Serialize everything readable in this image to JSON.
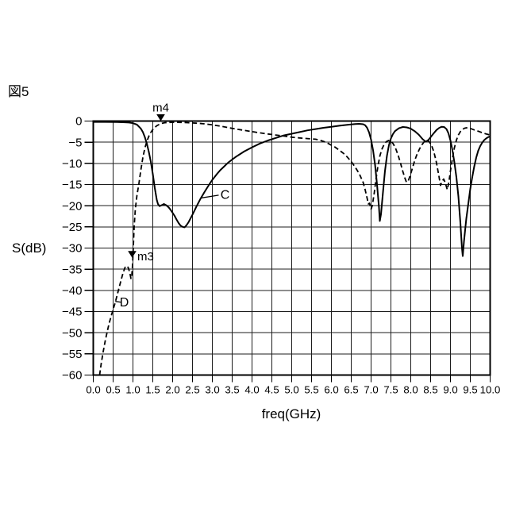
{
  "figure": {
    "label": "図5"
  },
  "colors": {
    "line": "#000000",
    "grid": "#1c1c1c",
    "background": "#ffffff"
  },
  "chart_data": {
    "type": "line",
    "title": "",
    "xlabel": "freq(GHz)",
    "ylabel": "S(dB)",
    "xlim": [
      0,
      10
    ],
    "ylim": [
      -60,
      0
    ],
    "grid": true,
    "x_ticks": [
      0,
      0.5,
      1,
      1.5,
      2,
      2.5,
      3,
      3.5,
      4,
      4.5,
      5,
      5.5,
      6,
      6.5,
      7,
      7.5,
      8,
      8.5,
      9,
      9.5,
      10
    ],
    "x_tick_labels": [
      "0.0",
      "0.5",
      "1.0",
      "1.5",
      "2.0",
      "2.5",
      "3.0",
      "3.5",
      "4.0",
      "4.5",
      "5.0",
      "5.5",
      "6.0",
      "6.5",
      "7.0",
      "7.5",
      "8.0",
      "8.5",
      "9.0",
      "9.5",
      "10.0"
    ],
    "y_ticks": [
      0,
      -5,
      -10,
      -15,
      -20,
      -25,
      -30,
      -35,
      -40,
      -45,
      -50,
      -55,
      -60
    ],
    "y_tick_labels": [
      "0",
      "−5",
      "−10",
      "−15",
      "−20",
      "−25",
      "−30",
      "−35",
      "−40",
      "−45",
      "−50",
      "−55",
      "−60"
    ],
    "series": [
      {
        "name": "C",
        "style": "solid",
        "points": [
          [
            0.0,
            -0.2
          ],
          [
            0.3,
            -0.2
          ],
          [
            0.6,
            -0.25
          ],
          [
            0.8,
            -0.3
          ],
          [
            0.9,
            -0.35
          ],
          [
            1.0,
            -0.5
          ],
          [
            1.1,
            -0.85
          ],
          [
            1.2,
            -1.8
          ],
          [
            1.25,
            -2.6
          ],
          [
            1.3,
            -3.8
          ],
          [
            1.35,
            -5.3
          ],
          [
            1.4,
            -7.3
          ],
          [
            1.45,
            -9.6
          ],
          [
            1.5,
            -12.5
          ],
          [
            1.55,
            -15.8
          ],
          [
            1.6,
            -18.6
          ],
          [
            1.63,
            -19.6
          ],
          [
            1.67,
            -20.1
          ],
          [
            1.72,
            -19.9
          ],
          [
            1.78,
            -19.6
          ],
          [
            1.84,
            -19.9
          ],
          [
            1.9,
            -20.4
          ],
          [
            1.95,
            -21.0
          ],
          [
            2.0,
            -21.7
          ],
          [
            2.05,
            -22.4
          ],
          [
            2.1,
            -23.3
          ],
          [
            2.15,
            -24.1
          ],
          [
            2.2,
            -24.7
          ],
          [
            2.25,
            -25.0
          ],
          [
            2.3,
            -25.1
          ],
          [
            2.35,
            -24.6
          ],
          [
            2.4,
            -23.9
          ],
          [
            2.45,
            -23.0
          ],
          [
            2.5,
            -22.1
          ],
          [
            2.6,
            -20.2
          ],
          [
            2.7,
            -18.4
          ],
          [
            2.8,
            -16.8
          ],
          [
            2.9,
            -15.3
          ],
          [
            3.0,
            -13.9
          ],
          [
            3.1,
            -12.7
          ],
          [
            3.2,
            -11.6
          ],
          [
            3.3,
            -10.7
          ],
          [
            3.4,
            -9.8
          ],
          [
            3.5,
            -9.1
          ],
          [
            3.6,
            -8.4
          ],
          [
            3.7,
            -7.8
          ],
          [
            3.8,
            -7.2
          ],
          [
            3.9,
            -6.7
          ],
          [
            4.0,
            -6.2
          ],
          [
            4.2,
            -5.3
          ],
          [
            4.4,
            -4.6
          ],
          [
            4.6,
            -4.0
          ],
          [
            4.8,
            -3.4
          ],
          [
            5.0,
            -3.0
          ],
          [
            5.2,
            -2.6
          ],
          [
            5.4,
            -2.2
          ],
          [
            5.6,
            -1.9
          ],
          [
            5.8,
            -1.6
          ],
          [
            6.0,
            -1.35
          ],
          [
            6.2,
            -1.1
          ],
          [
            6.4,
            -0.9
          ],
          [
            6.6,
            -0.7
          ],
          [
            6.7,
            -0.65
          ],
          [
            6.8,
            -0.75
          ],
          [
            6.85,
            -1.0
          ],
          [
            6.9,
            -1.6
          ],
          [
            6.95,
            -2.7
          ],
          [
            7.0,
            -4.4
          ],
          [
            7.05,
            -6.9
          ],
          [
            7.1,
            -10.3
          ],
          [
            7.15,
            -15.0
          ],
          [
            7.2,
            -20.5
          ],
          [
            7.22,
            -23.6
          ],
          [
            7.25,
            -22.0
          ],
          [
            7.3,
            -16.8
          ],
          [
            7.35,
            -11.8
          ],
          [
            7.4,
            -8.2
          ],
          [
            7.45,
            -5.7
          ],
          [
            7.5,
            -4.1
          ],
          [
            7.55,
            -3.1
          ],
          [
            7.6,
            -2.4
          ],
          [
            7.7,
            -1.7
          ],
          [
            7.8,
            -1.4
          ],
          [
            7.9,
            -1.5
          ],
          [
            8.0,
            -1.8
          ],
          [
            8.1,
            -2.4
          ],
          [
            8.2,
            -3.2
          ],
          [
            8.3,
            -4.3
          ],
          [
            8.38,
            -4.9
          ],
          [
            8.45,
            -4.4
          ],
          [
            8.55,
            -3.2
          ],
          [
            8.65,
            -2.1
          ],
          [
            8.72,
            -1.6
          ],
          [
            8.78,
            -1.35
          ],
          [
            8.84,
            -1.4
          ],
          [
            8.9,
            -1.9
          ],
          [
            8.95,
            -2.9
          ],
          [
            9.0,
            -4.6
          ],
          [
            9.05,
            -6.9
          ],
          [
            9.1,
            -9.8
          ],
          [
            9.15,
            -13.3
          ],
          [
            9.2,
            -17.8
          ],
          [
            9.25,
            -24.0
          ],
          [
            9.29,
            -30.0
          ],
          [
            9.31,
            -31.9
          ],
          [
            9.34,
            -28.5
          ],
          [
            9.4,
            -23.0
          ],
          [
            9.45,
            -19.5
          ],
          [
            9.5,
            -16.0
          ],
          [
            9.55,
            -13.2
          ],
          [
            9.6,
            -10.7
          ],
          [
            9.65,
            -8.6
          ],
          [
            9.7,
            -7.0
          ],
          [
            9.75,
            -5.9
          ],
          [
            9.8,
            -5.1
          ],
          [
            9.85,
            -4.5
          ],
          [
            9.9,
            -4.1
          ],
          [
            9.95,
            -3.8
          ],
          [
            10.0,
            -3.6
          ]
        ]
      },
      {
        "name": "D",
        "style": "dashed",
        "points": [
          [
            0.16,
            -60
          ],
          [
            0.2,
            -57.3
          ],
          [
            0.25,
            -54.5
          ],
          [
            0.3,
            -52.0
          ],
          [
            0.35,
            -49.8
          ],
          [
            0.4,
            -47.8
          ],
          [
            0.45,
            -46.1
          ],
          [
            0.5,
            -44.5
          ],
          [
            0.55,
            -43.0
          ],
          [
            0.6,
            -41.2
          ],
          [
            0.65,
            -39.4
          ],
          [
            0.7,
            -37.6
          ],
          [
            0.75,
            -35.9
          ],
          [
            0.8,
            -34.6
          ],
          [
            0.84,
            -34.2
          ],
          [
            0.88,
            -34.6
          ],
          [
            0.92,
            -35.8
          ],
          [
            0.95,
            -37.2
          ],
          [
            0.97,
            -36.6
          ],
          [
            0.99,
            -34.0
          ],
          [
            1.01,
            -29.5
          ],
          [
            1.03,
            -25.0
          ],
          [
            1.06,
            -20.8
          ],
          [
            1.1,
            -17.6
          ],
          [
            1.15,
            -14.8
          ],
          [
            1.2,
            -11.5
          ],
          [
            1.25,
            -8.6
          ],
          [
            1.3,
            -6.4
          ],
          [
            1.35,
            -4.8
          ],
          [
            1.4,
            -3.6
          ],
          [
            1.45,
            -2.7
          ],
          [
            1.5,
            -2.0
          ],
          [
            1.55,
            -1.5
          ],
          [
            1.6,
            -1.1
          ],
          [
            1.7,
            -0.6
          ],
          [
            1.8,
            -0.4
          ],
          [
            1.9,
            -0.32
          ],
          [
            2.0,
            -0.3
          ],
          [
            2.2,
            -0.32
          ],
          [
            2.4,
            -0.4
          ],
          [
            2.6,
            -0.5
          ],
          [
            2.8,
            -0.65
          ],
          [
            3.0,
            -0.9
          ],
          [
            3.2,
            -1.2
          ],
          [
            3.4,
            -1.55
          ],
          [
            3.6,
            -1.9
          ],
          [
            3.8,
            -2.2
          ],
          [
            4.0,
            -2.5
          ],
          [
            4.2,
            -2.8
          ],
          [
            4.4,
            -3.05
          ],
          [
            4.6,
            -3.3
          ],
          [
            4.8,
            -3.55
          ],
          [
            5.0,
            -3.8
          ],
          [
            5.2,
            -4.0
          ],
          [
            5.4,
            -4.15
          ],
          [
            5.6,
            -4.3
          ],
          [
            5.7,
            -4.5
          ],
          [
            5.8,
            -4.8
          ],
          [
            5.9,
            -5.2
          ],
          [
            6.0,
            -5.7
          ],
          [
            6.1,
            -6.2
          ],
          [
            6.2,
            -6.9
          ],
          [
            6.3,
            -7.6
          ],
          [
            6.4,
            -8.5
          ],
          [
            6.5,
            -9.6
          ],
          [
            6.6,
            -10.9
          ],
          [
            6.7,
            -12.4
          ],
          [
            6.8,
            -14.5
          ],
          [
            6.85,
            -16.2
          ],
          [
            6.9,
            -18.2
          ],
          [
            6.93,
            -19.6
          ],
          [
            6.96,
            -19.4
          ],
          [
            7.0,
            -20.8
          ],
          [
            7.03,
            -20.0
          ],
          [
            7.08,
            -17.0
          ],
          [
            7.12,
            -14.0
          ],
          [
            7.17,
            -10.8
          ],
          [
            7.22,
            -8.3
          ],
          [
            7.27,
            -6.7
          ],
          [
            7.32,
            -5.7
          ],
          [
            7.38,
            -4.9
          ],
          [
            7.44,
            -4.6
          ],
          [
            7.5,
            -4.7
          ],
          [
            7.56,
            -5.4
          ],
          [
            7.62,
            -6.5
          ],
          [
            7.68,
            -8.0
          ],
          [
            7.74,
            -9.9
          ],
          [
            7.8,
            -11.9
          ],
          [
            7.85,
            -13.4
          ],
          [
            7.89,
            -14.4
          ],
          [
            7.93,
            -14.3
          ],
          [
            7.98,
            -13.0
          ],
          [
            8.04,
            -11.2
          ],
          [
            8.1,
            -9.3
          ],
          [
            8.16,
            -7.8
          ],
          [
            8.22,
            -6.6
          ],
          [
            8.28,
            -5.6
          ],
          [
            8.34,
            -4.9
          ],
          [
            8.4,
            -4.5
          ],
          [
            8.46,
            -4.8
          ],
          [
            8.52,
            -5.7
          ],
          [
            8.58,
            -7.2
          ],
          [
            8.64,
            -9.5
          ],
          [
            8.7,
            -12.5
          ],
          [
            8.75,
            -15.2
          ],
          [
            8.79,
            -14.2
          ],
          [
            8.83,
            -13.7
          ],
          [
            8.87,
            -14.6
          ],
          [
            8.92,
            -16.2
          ],
          [
            8.96,
            -14.5
          ],
          [
            9.0,
            -11.8
          ],
          [
            9.05,
            -8.8
          ],
          [
            9.1,
            -6.3
          ],
          [
            9.15,
            -4.5
          ],
          [
            9.2,
            -3.3
          ],
          [
            9.25,
            -2.5
          ],
          [
            9.3,
            -2.0
          ],
          [
            9.35,
            -1.7
          ],
          [
            9.4,
            -1.6
          ],
          [
            9.45,
            -1.65
          ],
          [
            9.5,
            -1.75
          ],
          [
            9.6,
            -2.1
          ],
          [
            9.7,
            -2.4
          ],
          [
            9.8,
            -2.75
          ],
          [
            9.9,
            -3.05
          ],
          [
            10.0,
            -3.3
          ]
        ]
      }
    ],
    "markers": [
      {
        "label": "m4",
        "freq": 1.7,
        "db": 0,
        "label_pos": "above"
      },
      {
        "label": "m3",
        "freq": 0.98,
        "db": -32.3,
        "label_pos": "right"
      }
    ],
    "annotations": [
      {
        "text": "C",
        "freq": 3.32,
        "db": -17.4,
        "leader": [
          [
            3.16,
            -17.5
          ],
          [
            2.7,
            -18.2
          ]
        ]
      },
      {
        "text": "D",
        "freq": 0.78,
        "db": -42.8,
        "leader": [
          [
            0.7,
            -42.8
          ],
          [
            0.555,
            -42.6
          ]
        ]
      }
    ]
  }
}
